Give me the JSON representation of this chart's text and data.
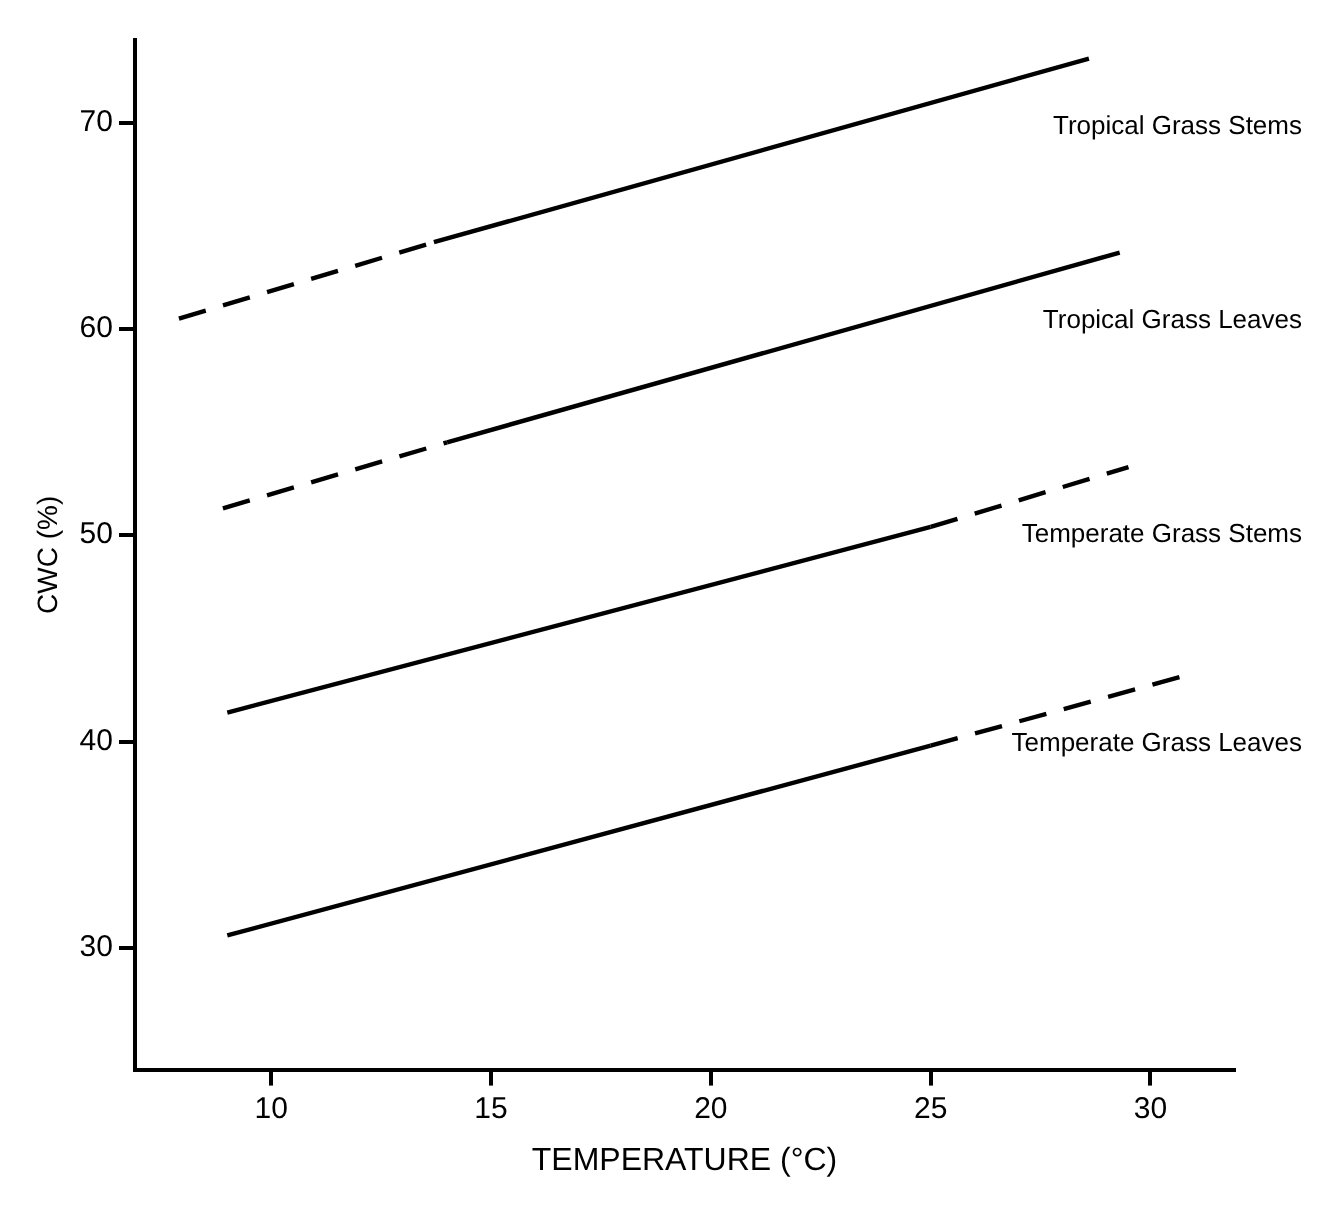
{
  "chart_data": {
    "type": "line",
    "xlabel": "TEMPERATURE (°C)",
    "ylabel": "CWC (%)",
    "xlim": [
      6.9,
      31.9
    ],
    "ylim": [
      24.1,
      74
    ],
    "xticks": [
      10,
      15,
      20,
      25,
      30
    ],
    "yticks": [
      30,
      40,
      50,
      60,
      70
    ],
    "grid": false,
    "legend": false,
    "marker": "none",
    "series": [
      {
        "color": "#000000",
        "line_style": "dashed",
        "x": [
          7.9,
          13.7
        ],
        "values": [
          60.5,
          64.2
        ]
      },
      {
        "name": "Tropical Grass Stems",
        "color": "#000000",
        "line_style": "solid",
        "x": [
          13.7,
          28.6
        ],
        "values": [
          64.2,
          73.1
        ]
      },
      {
        "color": "#000000",
        "line_style": "dashed",
        "x": [
          8.9,
          14.0
        ],
        "values": [
          51.3,
          54.5
        ]
      },
      {
        "name": "Tropical Grass Leaves",
        "color": "#000000",
        "line_style": "solid",
        "x": [
          14.0,
          29.3
        ],
        "values": [
          54.5,
          63.7
        ]
      },
      {
        "color": "#000000",
        "line_style": "solid",
        "x": [
          9.0,
          25.0
        ],
        "values": [
          41.4,
          50.4
        ]
      },
      {
        "name": "Temperate Grass Stems",
        "color": "#000000",
        "line_style": "dashed",
        "x": [
          25.0,
          29.5
        ],
        "values": [
          50.4,
          53.3
        ]
      },
      {
        "color": "#000000",
        "line_style": "solid",
        "x": [
          9.0,
          25.0
        ],
        "values": [
          30.6,
          39.8
        ]
      },
      {
        "name": "Temperate Grass Leaves",
        "color": "#000000",
        "line_style": "dashed",
        "x": [
          25.0,
          30.8
        ],
        "values": [
          39.8,
          43.2
        ]
      }
    ]
  }
}
